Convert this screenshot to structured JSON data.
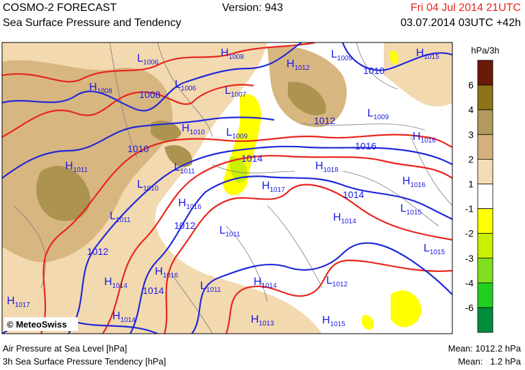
{
  "header": {
    "title": "COSMO-2 FORECAST",
    "subtitle": "Sea Surface Pressure and Tendency",
    "version": "Version: 943",
    "valid_time": "Fri 04 Jul 2014 21UTC",
    "run_time": "03.07.2014 03UTC +42h"
  },
  "map": {
    "credit": "© MeteoSwiss",
    "pressure_centers": [
      {
        "letter": "L",
        "pressure": "1006"
      },
      {
        "letter": "H",
        "pressure": "1008"
      },
      {
        "letter": "H",
        "pressure": "1012"
      },
      {
        "letter": "L",
        "pressure": "1009"
      },
      {
        "letter": "H",
        "pressure": "1015"
      },
      {
        "letter": "H",
        "pressure": "1008"
      },
      {
        "letter": "L",
        "pressure": "1006"
      },
      {
        "letter": "L",
        "pressure": "1007"
      },
      {
        "letter": "L",
        "pressure": "1009"
      },
      {
        "letter": "H",
        "pressure": "1010"
      },
      {
        "letter": "L",
        "pressure": "1009"
      },
      {
        "letter": "H",
        "pressure": "1016"
      },
      {
        "letter": "H",
        "pressure": "1011"
      },
      {
        "letter": "L",
        "pressure": "1011"
      },
      {
        "letter": "H",
        "pressure": "1018"
      },
      {
        "letter": "H",
        "pressure": "1016"
      },
      {
        "letter": "L",
        "pressure": "1010"
      },
      {
        "letter": "H",
        "pressure": "1017"
      },
      {
        "letter": "H",
        "pressure": "1016"
      },
      {
        "letter": "L",
        "pressure": "1011"
      },
      {
        "letter": "L",
        "pressure": "1015"
      },
      {
        "letter": "H",
        "pressure": "1014"
      },
      {
        "letter": "L",
        "pressure": "1011"
      },
      {
        "letter": "L",
        "pressure": "1015"
      },
      {
        "letter": "H",
        "pressure": "1016"
      },
      {
        "letter": "H",
        "pressure": "1014"
      },
      {
        "letter": "H",
        "pressure": "1014"
      },
      {
        "letter": "L",
        "pressure": "1012"
      },
      {
        "letter": "L",
        "pressure": "1011"
      },
      {
        "letter": "H",
        "pressure": "1017"
      },
      {
        "letter": "H",
        "pressure": "1014"
      },
      {
        "letter": "H",
        "pressure": "1013"
      },
      {
        "letter": "H",
        "pressure": "1015"
      }
    ],
    "isobar_labels": [
      "1010",
      "1008",
      "1012",
      "1016",
      "1010",
      "1014",
      "1014",
      "1012",
      "1012",
      "1014"
    ]
  },
  "legend": {
    "unit": "hPa/3h",
    "ticks": [
      6,
      4,
      3,
      2,
      1,
      -1,
      -2,
      -3,
      -4,
      -6
    ],
    "colors": [
      "#6b1a08",
      "#8c7418",
      "#b09a5c",
      "#d4b07c",
      "#f4dcb4",
      "#ffffff",
      "#ffff00",
      "#c8f000",
      "#80e020",
      "#20d020",
      "#008c3c"
    ]
  },
  "footer": {
    "pressure_label": "Air Pressure at Sea Level [hPa]",
    "tendency_label": "3h Sea Surface Pressure Tendency [hPa]",
    "pressure_mean": "Mean: 1012.2 hPa",
    "tendency_mean": "Mean:   1.2 hPa"
  }
}
